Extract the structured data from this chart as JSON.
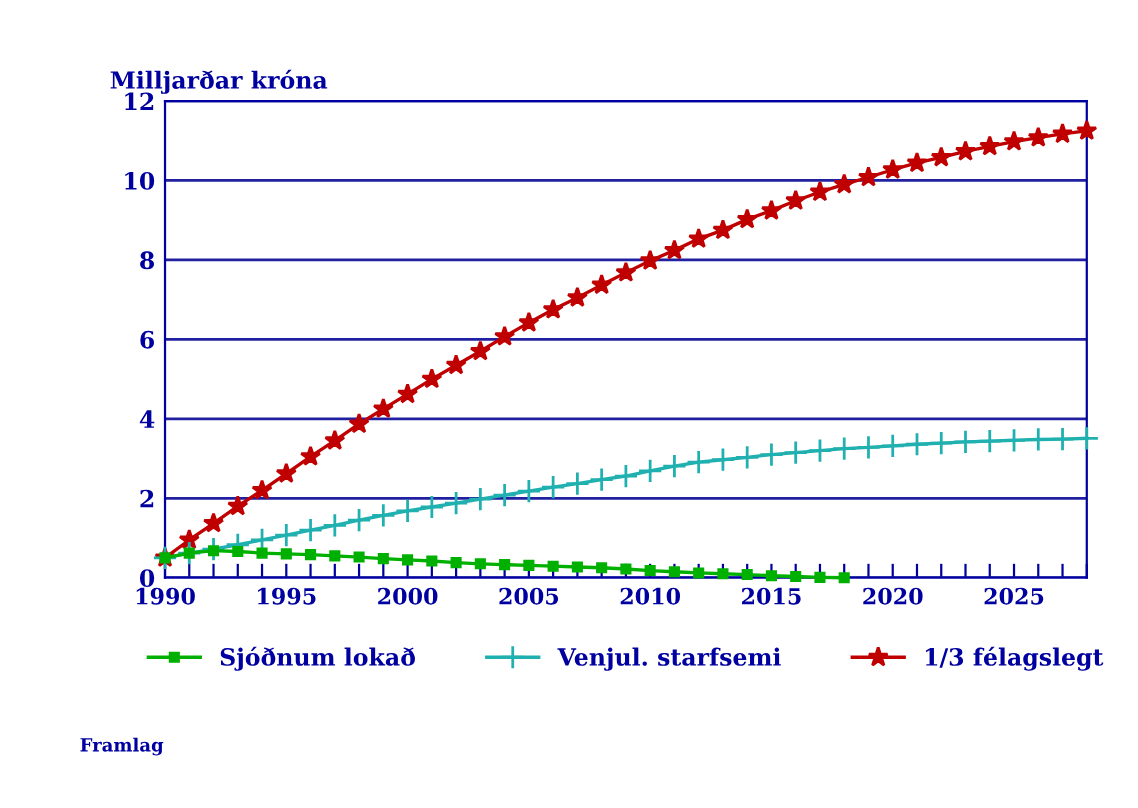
{
  "chart_data": {
    "type": "line",
    "ylabel": "Milljarðar króna",
    "x": [
      1990,
      1991,
      1992,
      1993,
      1994,
      1995,
      1996,
      1997,
      1998,
      1999,
      2000,
      2001,
      2002,
      2003,
      2004,
      2005,
      2006,
      2007,
      2008,
      2009,
      2010,
      2011,
      2012,
      2013,
      2014,
      2015,
      2016,
      2017,
      2018,
      2019,
      2020,
      2021,
      2022,
      2023,
      2024,
      2025,
      2026,
      2027,
      2028
    ],
    "series": [
      {
        "name": "Sjóðnum lokað",
        "color": "#00b000",
        "marker": "square",
        "values": [
          0.5,
          0.62,
          0.68,
          0.66,
          0.62,
          0.6,
          0.58,
          0.55,
          0.52,
          0.48,
          0.45,
          0.42,
          0.38,
          0.35,
          0.33,
          0.31,
          0.29,
          0.27,
          0.25,
          0.22,
          0.18,
          0.15,
          0.12,
          0.1,
          0.08,
          0.05,
          0.03,
          0.01,
          0.0,
          null,
          null,
          null,
          null,
          null,
          null,
          null,
          null,
          null,
          null
        ]
      },
      {
        "name": "Venjul. starfsemi",
        "color": "#20b0b0",
        "marker": "cross",
        "values": [
          0.5,
          0.62,
          0.72,
          0.83,
          0.95,
          1.07,
          1.2,
          1.32,
          1.45,
          1.57,
          1.68,
          1.78,
          1.88,
          1.98,
          2.08,
          2.18,
          2.28,
          2.37,
          2.47,
          2.56,
          2.69,
          2.81,
          2.91,
          2.97,
          3.03,
          3.1,
          3.15,
          3.2,
          3.25,
          3.28,
          3.32,
          3.36,
          3.39,
          3.42,
          3.44,
          3.46,
          3.48,
          3.49,
          3.51
        ]
      },
      {
        "name": "1/3 félagslegt",
        "color": "#c00000",
        "marker": "star",
        "values": [
          0.5,
          0.95,
          1.37,
          1.8,
          2.2,
          2.62,
          3.05,
          3.45,
          3.87,
          4.25,
          4.62,
          5.0,
          5.35,
          5.7,
          6.07,
          6.42,
          6.75,
          7.05,
          7.37,
          7.68,
          7.98,
          8.24,
          8.53,
          8.75,
          9.02,
          9.24,
          9.49,
          9.71,
          9.9,
          10.08,
          10.27,
          10.44,
          10.58,
          10.73,
          10.86,
          10.98,
          11.08,
          11.17,
          11.25
        ]
      }
    ],
    "xlim": [
      1990,
      2028
    ],
    "xticks": [
      1990,
      {
        "value": 1991,
        "label": null
      },
      {
        "value": 1992,
        "label": null
      },
      {
        "value": 1993,
        "label": null
      },
      {
        "value": 1994,
        "label": null
      },
      1995,
      {
        "value": 1996,
        "label": null
      },
      {
        "value": 1997,
        "label": null
      },
      {
        "value": 1998,
        "label": null
      },
      {
        "value": 1999,
        "label": null
      },
      2000,
      {
        "value": 2001,
        "label": null
      },
      {
        "value": 2002,
        "label": null
      },
      {
        "value": 2003,
        "label": null
      },
      {
        "value": 2004,
        "label": null
      },
      2005,
      {
        "value": 2006,
        "label": null
      },
      {
        "value": 2007,
        "label": null
      },
      {
        "value": 2008,
        "label": null
      },
      {
        "value": 2009,
        "label": null
      },
      2010,
      {
        "value": 2011,
        "label": null
      },
      {
        "value": 2012,
        "label": null
      },
      {
        "value": 2013,
        "label": null
      },
      {
        "value": 2014,
        "label": null
      },
      2015,
      {
        "value": 2016,
        "label": null
      },
      {
        "value": 2017,
        "label": null
      },
      {
        "value": 2018,
        "label": null
      },
      {
        "value": 2019,
        "label": null
      },
      2020,
      {
        "value": 2021,
        "label": null
      },
      {
        "value": 2022,
        "label": null
      },
      {
        "value": 2023,
        "label": null
      },
      {
        "value": 2024,
        "label": null
      },
      2025,
      {
        "value": 2026,
        "label": null
      },
      {
        "value": 2027,
        "label": null
      },
      {
        "value": 2028,
        "label": null
      }
    ],
    "ylim": [
      0,
      12
    ],
    "yticks": [
      0,
      2,
      4,
      6,
      8,
      10,
      12
    ],
    "grid": "y",
    "legend": "bottom",
    "line_style": "solid",
    "annotations": [
      "Framlag"
    ]
  }
}
